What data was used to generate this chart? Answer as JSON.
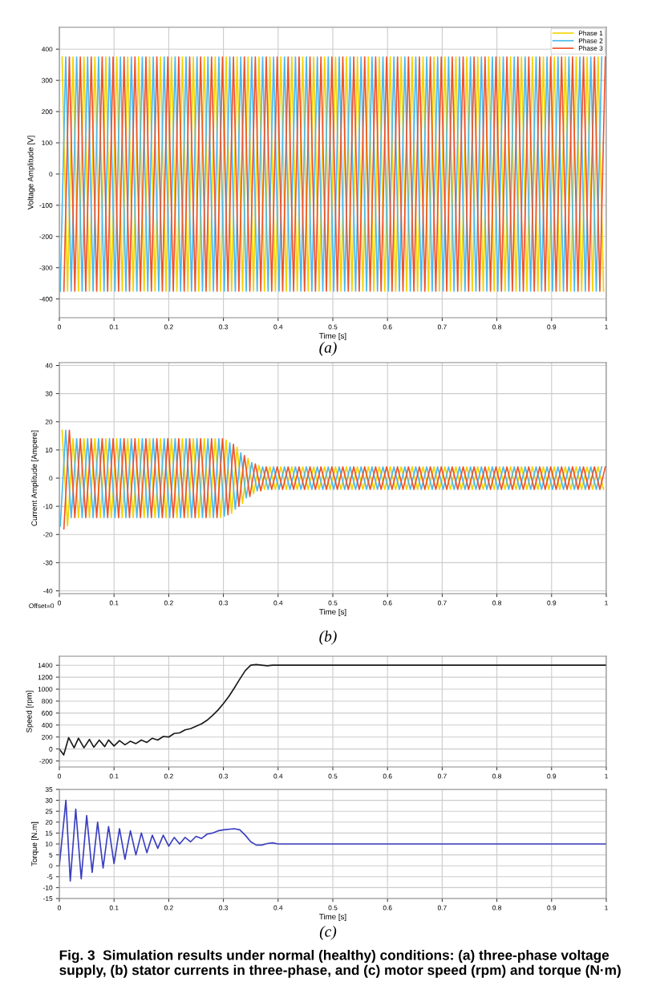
{
  "chart_data": [
    {
      "type": "line",
      "xlabel": "Time [s]",
      "ylabel": "Voltage Amplitude [V]",
      "xlim": [
        0,
        1
      ],
      "xticks": [
        0,
        0.1,
        0.2,
        0.3,
        0.4,
        0.5,
        0.6,
        0.7,
        0.8,
        0.9,
        1
      ],
      "ylim": [
        -460,
        470
      ],
      "yticks": [
        -400,
        -300,
        -200,
        -100,
        0,
        100,
        200,
        300,
        400
      ],
      "grid": true,
      "legend": "top right",
      "annotations": [
        "(a)"
      ],
      "series": [
        {
          "name": "Phase 1",
          "color": "#f2d300",
          "x": [
            0.005,
            0.015,
            0.025,
            0.035,
            0.045,
            0.055,
            0.065,
            0.075,
            0.085,
            0.095,
            0.105,
            0.115,
            0.125,
            0.135,
            0.145,
            0.155,
            0.165,
            0.175,
            0.185,
            0.195,
            0.205,
            0.215,
            0.225,
            0.235,
            0.245,
            0.255,
            0.265,
            0.275,
            0.285,
            0.295,
            0.305,
            0.315,
            0.325,
            0.335,
            0.345,
            0.355,
            0.365,
            0.375,
            0.385,
            0.395,
            0.405,
            0.415,
            0.425,
            0.435,
            0.445,
            0.455,
            0.465,
            0.475,
            0.485,
            0.495,
            0.505,
            0.515,
            0.525,
            0.535,
            0.545,
            0.555,
            0.565,
            0.575,
            0.585,
            0.595,
            0.605,
            0.615,
            0.625,
            0.635,
            0.645,
            0.655,
            0.665,
            0.675,
            0.685,
            0.695,
            0.705,
            0.715,
            0.725,
            0.735,
            0.745,
            0.755,
            0.765,
            0.775,
            0.785,
            0.795,
            0.805,
            0.815,
            0.825,
            0.835,
            0.845,
            0.855,
            0.865,
            0.875,
            0.885,
            0.895,
            0.905,
            0.915,
            0.925,
            0.935,
            0.945,
            0.955,
            0.965,
            0.975,
            0.985,
            0.995
          ],
          "values": [
            375,
            -375,
            375,
            -375,
            375,
            -375,
            375,
            -375,
            375,
            -375,
            375,
            -375,
            375,
            -375,
            375,
            -375,
            375,
            -375,
            375,
            -375,
            375,
            -375,
            375,
            -375,
            375,
            -375,
            375,
            -375,
            375,
            -375,
            375,
            -375,
            375,
            -375,
            375,
            -375,
            375,
            -375,
            375,
            -375,
            375,
            -375,
            375,
            -375,
            375,
            -375,
            375,
            -375,
            375,
            -375,
            375,
            -375,
            375,
            -375,
            375,
            -375,
            375,
            -375,
            375,
            -375,
            375,
            -375,
            375,
            -375,
            375,
            -375,
            375,
            -375,
            375,
            -375,
            375,
            -375,
            375,
            -375,
            375,
            -375,
            375,
            -375,
            375,
            -375,
            375,
            -375,
            375,
            -375,
            375,
            -375,
            375,
            -375,
            375,
            -375,
            375,
            -375,
            375,
            -375,
            375,
            -375,
            375,
            -375,
            375,
            -375
          ]
        },
        {
          "name": "Phase 2",
          "color": "#4db8ec",
          "x": [
            0.0017,
            0.0117,
            0.0217,
            0.0317,
            0.0417,
            0.0517,
            0.0617,
            0.0717,
            0.0817,
            0.0917,
            0.1017,
            0.1117,
            0.1217,
            0.1317,
            0.1417,
            0.1517,
            0.1617,
            0.1717,
            0.1817,
            0.1917,
            0.2017,
            0.2117,
            0.2217,
            0.2317,
            0.2417,
            0.2517,
            0.2617,
            0.2717,
            0.2817,
            0.2917,
            0.3017,
            0.3117,
            0.3217,
            0.3317,
            0.3417,
            0.3517,
            0.3617,
            0.3717,
            0.3817,
            0.3917,
            0.4017,
            0.4117,
            0.4217,
            0.4317,
            0.4417,
            0.4517,
            0.4617,
            0.4717,
            0.4817,
            0.4917,
            0.5017,
            0.5117,
            0.5217,
            0.5317,
            0.5417,
            0.5517,
            0.5617,
            0.5717,
            0.5817,
            0.5917,
            0.6017,
            0.6117,
            0.6217,
            0.6317,
            0.6417,
            0.6517,
            0.6617,
            0.6717,
            0.6817,
            0.6917,
            0.7017,
            0.7117,
            0.7217,
            0.7317,
            0.7417,
            0.7517,
            0.7617,
            0.7717,
            0.7817,
            0.7917,
            0.8017,
            0.8117,
            0.8217,
            0.8317,
            0.8417,
            0.8517,
            0.8617,
            0.8717,
            0.8817,
            0.8917,
            0.9017,
            0.9117,
            0.9217,
            0.9317,
            0.9417,
            0.9517,
            0.9617,
            0.9717,
            0.9817,
            0.9917
          ],
          "values": [
            -375,
            375,
            -375,
            375,
            -375,
            375,
            -375,
            375,
            -375,
            375,
            -375,
            375,
            -375,
            375,
            -375,
            375,
            -375,
            375,
            -375,
            375,
            -375,
            375,
            -375,
            375,
            -375,
            375,
            -375,
            375,
            -375,
            375,
            -375,
            375,
            -375,
            375,
            -375,
            375,
            -375,
            375,
            -375,
            375,
            -375,
            375,
            -375,
            375,
            -375,
            375,
            -375,
            375,
            -375,
            375,
            -375,
            375,
            -375,
            375,
            -375,
            375,
            -375,
            375,
            -375,
            375,
            -375,
            375,
            -375,
            375,
            -375,
            375,
            -375,
            375,
            -375,
            375,
            -375,
            375,
            -375,
            375,
            -375,
            375,
            -375,
            375,
            -375,
            375,
            -375,
            375,
            -375,
            375,
            -375,
            375,
            -375,
            375,
            -375,
            375,
            -375,
            375,
            -375,
            375,
            -375,
            375,
            -375,
            375,
            -375,
            375
          ]
        },
        {
          "name": "Phase 3",
          "color": "#f0532a",
          "x": [
            0.0083,
            0.0183,
            0.0283,
            0.0383,
            0.0483,
            0.0583,
            0.0683,
            0.0783,
            0.0883,
            0.0983,
            0.1083,
            0.1183,
            0.1283,
            0.1383,
            0.1483,
            0.1583,
            0.1683,
            0.1783,
            0.1883,
            0.1983,
            0.2083,
            0.2183,
            0.2283,
            0.2383,
            0.2483,
            0.2583,
            0.2683,
            0.2783,
            0.2883,
            0.2983,
            0.3083,
            0.3183,
            0.3283,
            0.3383,
            0.3483,
            0.3583,
            0.3683,
            0.3783,
            0.3883,
            0.3983,
            0.4083,
            0.4183,
            0.4283,
            0.4383,
            0.4483,
            0.4583,
            0.4683,
            0.4783,
            0.4883,
            0.4983,
            0.5083,
            0.5183,
            0.5283,
            0.5383,
            0.5483,
            0.5583,
            0.5683,
            0.5783,
            0.5883,
            0.5983,
            0.6083,
            0.6183,
            0.6283,
            0.6383,
            0.6483,
            0.6583,
            0.6683,
            0.6783,
            0.6883,
            0.6983,
            0.7083,
            0.7183,
            0.7283,
            0.7383,
            0.7483,
            0.7583,
            0.7683,
            0.7783,
            0.7883,
            0.7983,
            0.8083,
            0.8183,
            0.8283,
            0.8383,
            0.8483,
            0.8583,
            0.8683,
            0.8783,
            0.8883,
            0.8983,
            0.9083,
            0.9183,
            0.9283,
            0.9383,
            0.9483,
            0.9583,
            0.9683,
            0.9783,
            0.9883,
            0.9983
          ],
          "values": [
            -375,
            375,
            -375,
            375,
            -375,
            375,
            -375,
            375,
            -375,
            375,
            -375,
            375,
            -375,
            375,
            -375,
            375,
            -375,
            375,
            -375,
            375,
            -375,
            375,
            -375,
            375,
            -375,
            375,
            -375,
            375,
            -375,
            375,
            -375,
            375,
            -375,
            375,
            -375,
            375,
            -375,
            375,
            -375,
            375,
            -375,
            375,
            -375,
            375,
            -375,
            375,
            -375,
            375,
            -375,
            375,
            -375,
            375,
            -375,
            375,
            -375,
            375,
            -375,
            375,
            -375,
            375,
            -375,
            375,
            -375,
            375,
            -375,
            375,
            -375,
            375,
            -375,
            375,
            -375,
            375,
            -375,
            375,
            -375,
            375,
            -375,
            375,
            -375,
            375,
            -375,
            375,
            -375,
            375,
            -375,
            375,
            -375,
            375,
            -375,
            375,
            -375,
            375,
            -375,
            375,
            -375,
            375,
            -375,
            375,
            -375,
            375
          ]
        }
      ]
    },
    {
      "type": "line",
      "xlabel": "Time [s]",
      "ylabel": "Current Amplitude [Ampere]",
      "xlim": [
        0,
        1
      ],
      "xticks": [
        0,
        0.1,
        0.2,
        0.3,
        0.4,
        0.5,
        0.6,
        0.7,
        0.8,
        0.9,
        1
      ],
      "ylim": [
        -41,
        41
      ],
      "yticks": [
        -40,
        -30,
        -20,
        -10,
        0,
        10,
        20,
        30,
        40
      ],
      "grid": true,
      "annotations": [
        "(b)",
        "Offset=0"
      ],
      "series": [
        {
          "color": "#f2d300",
          "x": [
            0.005,
            0.015,
            0.025,
            0.035,
            0.045,
            0.055,
            0.065,
            0.075,
            0.085,
            0.095,
            0.105,
            0.115,
            0.125,
            0.135,
            0.145,
            0.155,
            0.165,
            0.175,
            0.185,
            0.195,
            0.205,
            0.215,
            0.225,
            0.235,
            0.245,
            0.255,
            0.265,
            0.275,
            0.285,
            0.295,
            0.305,
            0.315,
            0.325,
            0.335,
            0.345,
            0.355,
            0.365,
            0.375,
            0.385,
            0.395,
            0.405,
            0.415,
            0.425,
            0.435,
            0.445,
            0.455,
            0.465,
            0.475,
            0.485,
            0.495,
            0.505,
            0.515,
            0.525,
            0.535,
            0.545,
            0.555,
            0.565,
            0.575,
            0.585,
            0.595,
            0.605,
            0.615,
            0.625,
            0.635,
            0.645,
            0.655,
            0.665,
            0.675,
            0.685,
            0.695,
            0.705,
            0.715,
            0.725,
            0.735,
            0.745,
            0.755,
            0.765,
            0.775,
            0.785,
            0.795,
            0.805,
            0.815,
            0.825,
            0.835,
            0.845,
            0.855,
            0.865,
            0.875,
            0.885,
            0.895,
            0.905,
            0.915,
            0.925,
            0.935,
            0.945,
            0.955,
            0.965,
            0.975,
            0.985,
            0.995
          ],
          "values": [
            17,
            -17,
            14,
            -14,
            14,
            -14,
            14,
            -14,
            14,
            -14,
            14,
            -14,
            14,
            -14,
            14,
            -14,
            14,
            -14,
            14,
            -14,
            14,
            -14,
            14,
            -14,
            14,
            -14,
            14,
            -14,
            14,
            -14,
            13.5,
            -12.5,
            11,
            -9,
            7,
            -5.5,
            4.5,
            -4,
            4,
            -4,
            4,
            -4,
            4,
            -4,
            4,
            -4,
            4,
            -4,
            4,
            -4,
            4,
            -4,
            4,
            -4,
            4,
            -4,
            4,
            -4,
            4,
            -4,
            4,
            -4,
            4,
            -4,
            4,
            -4,
            4,
            -4,
            4,
            -4,
            4,
            -4,
            4,
            -4,
            4,
            -4,
            4,
            -4,
            4,
            -4,
            4,
            -4,
            4,
            -4,
            4,
            -4,
            4,
            -4,
            4,
            -4,
            4,
            -4,
            4,
            -4,
            4,
            -4,
            4,
            -4,
            4,
            -4
          ]
        },
        {
          "color": "#4db8ec",
          "x": [
            0.0017,
            0.0117,
            0.0217,
            0.0317,
            0.0417,
            0.0517,
            0.0617,
            0.0717,
            0.0817,
            0.0917,
            0.1017,
            0.1117,
            0.1217,
            0.1317,
            0.1417,
            0.1517,
            0.1617,
            0.1717,
            0.1817,
            0.1917,
            0.2017,
            0.2117,
            0.2217,
            0.2317,
            0.2417,
            0.2517,
            0.2617,
            0.2717,
            0.2817,
            0.2917,
            0.3017,
            0.3117,
            0.3217,
            0.3317,
            0.3417,
            0.3517,
            0.3617,
            0.3717,
            0.3817,
            0.3917,
            0.4017,
            0.4117,
            0.4217,
            0.4317,
            0.4417,
            0.4517,
            0.4617,
            0.4717,
            0.4817,
            0.4917,
            0.5017,
            0.5117,
            0.5217,
            0.5317,
            0.5417,
            0.5517,
            0.5617,
            0.5717,
            0.5817,
            0.5917,
            0.6017,
            0.6117,
            0.6217,
            0.6317,
            0.6417,
            0.6517,
            0.6617,
            0.6717,
            0.6817,
            0.6917,
            0.7017,
            0.7117,
            0.7217,
            0.7317,
            0.7417,
            0.7517,
            0.7617,
            0.7717,
            0.7817,
            0.7917,
            0.8017,
            0.8117,
            0.8217,
            0.8317,
            0.8417,
            0.8517,
            0.8617,
            0.8717,
            0.8817,
            0.8917,
            0.9017,
            0.9117,
            0.9217,
            0.9317,
            0.9417,
            0.9517,
            0.9617,
            0.9717,
            0.9817,
            0.9917
          ],
          "values": [
            -17,
            17,
            -14,
            14,
            -14,
            14,
            -14,
            14,
            -14,
            14,
            -14,
            14,
            -14,
            14,
            -14,
            14,
            -14,
            14,
            -14,
            14,
            -14,
            14,
            -14,
            14,
            -14,
            14,
            -14,
            14,
            -14,
            14,
            -13.5,
            12.5,
            -11,
            9,
            -7,
            5.5,
            -4.5,
            4,
            -4,
            4,
            -4,
            4,
            -4,
            4,
            -4,
            4,
            -4,
            4,
            -4,
            4,
            -4,
            4,
            -4,
            4,
            -4,
            4,
            -4,
            4,
            -4,
            4,
            -4,
            4,
            -4,
            4,
            -4,
            4,
            -4,
            4,
            -4,
            4,
            -4,
            4,
            -4,
            4,
            -4,
            4,
            -4,
            4,
            -4,
            4,
            -4,
            4,
            -4,
            4,
            -4,
            4,
            -4,
            4,
            -4,
            4,
            -4,
            4,
            -4,
            4,
            -4,
            4,
            -4,
            4,
            -4,
            4
          ]
        },
        {
          "color": "#f0532a",
          "x": [
            0.0083,
            0.0183,
            0.0283,
            0.0383,
            0.0483,
            0.0583,
            0.0683,
            0.0783,
            0.0883,
            0.0983,
            0.1083,
            0.1183,
            0.1283,
            0.1383,
            0.1483,
            0.1583,
            0.1683,
            0.1783,
            0.1883,
            0.1983,
            0.2083,
            0.2183,
            0.2283,
            0.2383,
            0.2483,
            0.2583,
            0.2683,
            0.2783,
            0.2883,
            0.2983,
            0.3083,
            0.3183,
            0.3283,
            0.3383,
            0.3483,
            0.3583,
            0.3683,
            0.3783,
            0.3883,
            0.3983,
            0.4083,
            0.4183,
            0.4283,
            0.4383,
            0.4483,
            0.4583,
            0.4683,
            0.4783,
            0.4883,
            0.4983,
            0.5083,
            0.5183,
            0.5283,
            0.5383,
            0.5483,
            0.5583,
            0.5683,
            0.5783,
            0.5883,
            0.5983,
            0.6083,
            0.6183,
            0.6283,
            0.6383,
            0.6483,
            0.6583,
            0.6683,
            0.6783,
            0.6883,
            0.6983,
            0.7083,
            0.7183,
            0.7283,
            0.7383,
            0.7483,
            0.7583,
            0.7683,
            0.7783,
            0.7883,
            0.7983,
            0.8083,
            0.8183,
            0.8283,
            0.8383,
            0.8483,
            0.8583,
            0.8683,
            0.8783,
            0.8883,
            0.8983,
            0.9083,
            0.9183,
            0.9283,
            0.9383,
            0.9483,
            0.9583,
            0.9683,
            0.9783,
            0.9883,
            0.9983
          ],
          "values": [
            -18,
            17,
            -14,
            14,
            -14,
            14,
            -14,
            14,
            -14,
            14,
            -14,
            14,
            -14,
            14,
            -14,
            14,
            -14,
            14,
            -14,
            14,
            -14,
            14,
            -14,
            14,
            -14,
            14,
            -14,
            14,
            -14,
            14,
            -13,
            12,
            -10,
            8,
            -6.5,
            5,
            -4.5,
            4,
            -4,
            4,
            -4,
            4,
            -4,
            4,
            -4,
            4,
            -4,
            4,
            -4,
            4,
            -4,
            4,
            -4,
            4,
            -4,
            4,
            -4,
            4,
            -4,
            4,
            -4,
            4,
            -4,
            4,
            -4,
            4,
            -4,
            4,
            -4,
            4,
            -4,
            4,
            -4,
            4,
            -4,
            4,
            -4,
            4,
            -4,
            4,
            -4,
            4,
            -4,
            4,
            -4,
            4,
            -4,
            4,
            -4,
            4,
            -4,
            4,
            -4,
            4,
            -4,
            4,
            -4,
            4,
            -4,
            4
          ]
        }
      ]
    },
    {
      "type": "line",
      "ylabel": "Speed [rpm]",
      "xlim": [
        0,
        1
      ],
      "xticks": [
        0,
        0.1,
        0.2,
        0.3,
        0.4,
        0.5,
        0.6,
        0.7,
        0.8,
        0.9,
        1
      ],
      "ylim": [
        -300,
        1550
      ],
      "yticks": [
        -200,
        0,
        200,
        400,
        600,
        800,
        1000,
        1200,
        1400
      ],
      "grid": true,
      "series": [
        {
          "color": "#1a1a1a",
          "x": [
            0,
            0.008,
            0.017,
            0.027,
            0.035,
            0.045,
            0.055,
            0.063,
            0.073,
            0.083,
            0.09,
            0.1,
            0.11,
            0.12,
            0.13,
            0.14,
            0.15,
            0.16,
            0.17,
            0.18,
            0.19,
            0.2,
            0.21,
            0.22,
            0.23,
            0.24,
            0.25,
            0.26,
            0.27,
            0.28,
            0.29,
            0.3,
            0.31,
            0.32,
            0.33,
            0.34,
            0.35,
            0.36,
            0.37,
            0.38,
            0.39,
            1
          ],
          "values": [
            0,
            -100,
            190,
            20,
            180,
            20,
            160,
            30,
            150,
            40,
            150,
            50,
            140,
            70,
            130,
            90,
            150,
            110,
            180,
            150,
            210,
            200,
            260,
            270,
            320,
            340,
            380,
            420,
            480,
            560,
            650,
            760,
            880,
            1020,
            1170,
            1310,
            1400,
            1410,
            1400,
            1390,
            1400,
            1400
          ]
        }
      ]
    },
    {
      "type": "line",
      "xlabel": "Time [s]",
      "ylabel": "Torque [N.m]",
      "xlim": [
        0,
        1
      ],
      "xticks": [
        0,
        0.1,
        0.2,
        0.3,
        0.4,
        0.5,
        0.6,
        0.7,
        0.8,
        0.9,
        1
      ],
      "ylim": [
        -15,
        35
      ],
      "yticks": [
        -15,
        -10,
        -5,
        0,
        5,
        10,
        15,
        20,
        25,
        30,
        35
      ],
      "grid": true,
      "annotations": [
        "(c)",
        "Fig. 3  Simulation results under normal (healthy) conditions: (a) three-phase voltage supply, (b) stator currents in three-phase, and (c) motor speed (rpm) and torque (N·m)"
      ],
      "series": [
        {
          "color": "#3a3fbf",
          "x": [
            0,
            0.012,
            0.02,
            0.03,
            0.04,
            0.05,
            0.06,
            0.07,
            0.08,
            0.09,
            0.1,
            0.11,
            0.12,
            0.13,
            0.14,
            0.15,
            0.16,
            0.17,
            0.18,
            0.19,
            0.2,
            0.21,
            0.22,
            0.23,
            0.24,
            0.25,
            0.26,
            0.27,
            0.28,
            0.29,
            0.3,
            0.32,
            0.33,
            0.34,
            0.35,
            0.36,
            0.37,
            0.38,
            0.39,
            0.4,
            1
          ],
          "values": [
            0,
            30,
            -7,
            26,
            -6,
            23,
            -3,
            20,
            -1,
            18,
            1,
            17,
            3,
            16,
            5,
            15,
            6,
            14,
            8,
            14,
            9,
            13,
            10,
            13,
            11,
            13.5,
            12.5,
            14.5,
            15,
            16,
            16.5,
            17,
            16.5,
            14,
            11,
            9.5,
            9.5,
            10.2,
            10.5,
            10,
            10
          ]
        }
      ]
    }
  ]
}
